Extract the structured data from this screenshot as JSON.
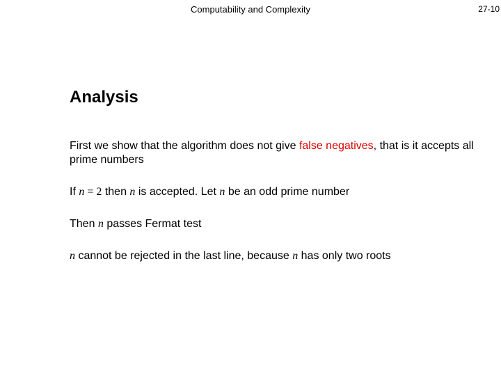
{
  "header": {
    "title": "Computability and Complexity",
    "page_number": "27-10"
  },
  "section_heading": "Analysis",
  "para1": {
    "t1": "First we show that the algorithm does not give  ",
    "t2": "false negatives",
    "t3": ",  that is it accepts all prime numbers"
  },
  "para2": {
    "t1": "If  ",
    "n1": "n",
    "eq": " = ",
    "two": "2",
    "t2": " then  ",
    "n2": "n",
    "t3": "  is accepted.   Let  ",
    "n3": "n",
    "t4": "  be an odd prime number"
  },
  "para3": {
    "t1": "Then  ",
    "n1": "n",
    "t2": "  passes  Fermat test"
  },
  "para4": {
    "n1": "n",
    "t1": "  cannot be rejected in the last line, because  ",
    "n2": "n",
    "t2": "  has only two roots"
  },
  "colors": {
    "text": "#000000",
    "accent": "#d90000",
    "background": "#ffffff"
  },
  "typography": {
    "body_font": "Arial",
    "math_font": "Times New Roman",
    "heading_size_pt": 24,
    "body_size_pt": 16,
    "header_size_pt": 13
  }
}
